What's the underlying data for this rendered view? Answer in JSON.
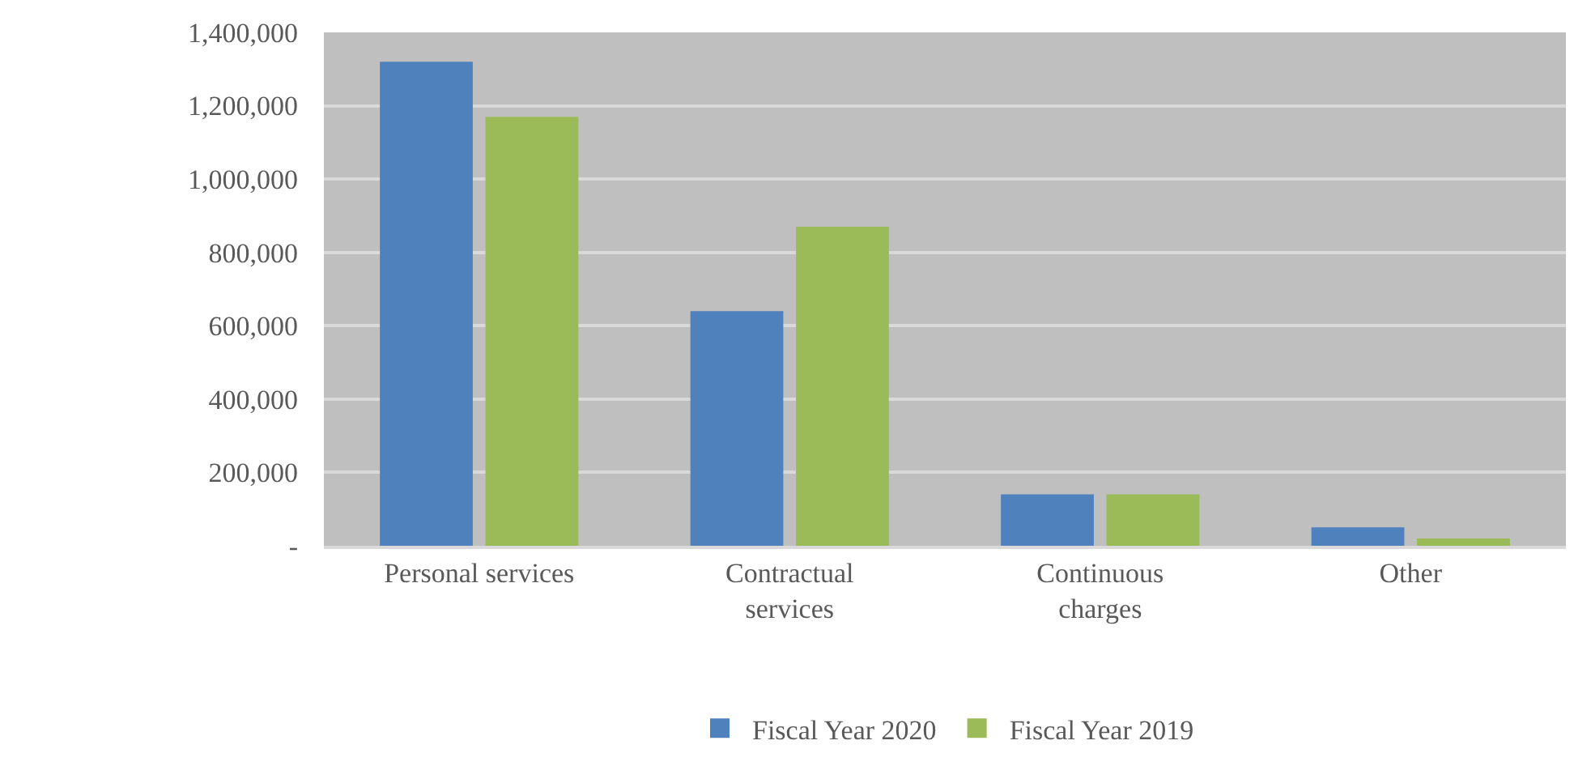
{
  "chart_data": {
    "type": "bar",
    "categories": [
      "Personal services",
      "Contractual services",
      "Continuous charges",
      "Other"
    ],
    "series": [
      {
        "name": "Fiscal Year 2020",
        "color": "#4f81bd",
        "values": [
          1320000,
          640000,
          140000,
          50000
        ]
      },
      {
        "name": "Fiscal Year 2019",
        "color": "#9bbb59",
        "values": [
          1170000,
          870000,
          140000,
          20000
        ]
      }
    ],
    "ylim": [
      0,
      1400000
    ],
    "yticks": [
      {
        "value": 0,
        "label": "-"
      },
      {
        "value": 200000,
        "label": "200,000"
      },
      {
        "value": 400000,
        "label": "400,000"
      },
      {
        "value": 600000,
        "label": "600,000"
      },
      {
        "value": 800000,
        "label": "800,000"
      },
      {
        "value": 1000000,
        "label": "1,000,000"
      },
      {
        "value": 1200000,
        "label": "1,200,000"
      },
      {
        "value": 1400000,
        "label": "1,400,000"
      }
    ],
    "grid": "y",
    "legend": "bottom"
  }
}
